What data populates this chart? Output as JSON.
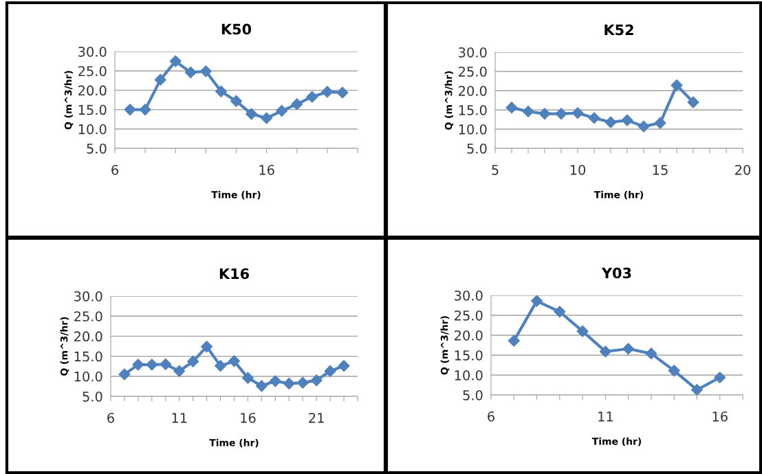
{
  "chart_data": [
    {
      "type": "line",
      "title": "K50",
      "xlabel": "Time (hr)",
      "ylabel": "Q (m^3/hr)",
      "x": [
        7,
        8,
        9,
        10,
        11,
        12,
        13,
        14,
        15,
        16,
        17,
        18,
        19,
        20,
        21
      ],
      "series": [
        {
          "color": "#4f81bd",
          "values": [
            15.0,
            15.0,
            22.7,
            27.5,
            24.6,
            24.9,
            19.7,
            17.2,
            13.9,
            12.8,
            14.7,
            16.4,
            18.3,
            19.6,
            19.4
          ]
        }
      ],
      "xlim": [
        6,
        22
      ],
      "xticks": [
        6,
        {
          "value": 8,
          "label": null
        },
        {
          "value": 10,
          "label": null
        },
        {
          "value": 12,
          "label": null
        },
        {
          "value": 14,
          "label": null
        },
        16,
        {
          "value": 18,
          "label": null
        },
        {
          "value": 20,
          "label": null
        },
        {
          "value": 22,
          "label": null
        }
      ],
      "ylim": [
        5,
        30
      ],
      "yticks": [
        {
          "value": 5,
          "label": "5.0"
        },
        {
          "value": 10,
          "label": "10.0"
        },
        {
          "value": 15,
          "label": "15.0"
        },
        {
          "value": 20,
          "label": "20.0"
        },
        {
          "value": 25,
          "label": "25.0"
        },
        {
          "value": 30,
          "label": "30.0"
        }
      ],
      "grid": "y",
      "marker": "diamond",
      "line_style": "solid",
      "legend": false
    },
    {
      "type": "line",
      "title": "K52",
      "xlabel": "Time (hr)",
      "ylabel": "Q (m^3/hr)",
      "x": [
        6,
        7,
        8,
        9,
        10,
        11,
        12,
        13,
        14,
        15,
        16,
        17
      ],
      "series": [
        {
          "color": "#4f81bd",
          "values": [
            15.6,
            14.6,
            14.0,
            14.0,
            14.2,
            12.9,
            11.8,
            12.3,
            10.7,
            11.6,
            21.4,
            17.0
          ]
        }
      ],
      "xlim": [
        5,
        20
      ],
      "xticks": [
        5,
        {
          "value": 6,
          "label": null
        },
        {
          "value": 7,
          "label": null
        },
        {
          "value": 8,
          "label": null
        },
        {
          "value": 9,
          "label": null
        },
        10,
        {
          "value": 11,
          "label": null
        },
        {
          "value": 12,
          "label": null
        },
        {
          "value": 13,
          "label": null
        },
        {
          "value": 14,
          "label": null
        },
        15,
        {
          "value": 16,
          "label": null
        },
        {
          "value": 17,
          "label": null
        },
        {
          "value": 18,
          "label": null
        },
        {
          "value": 19,
          "label": null
        },
        20
      ],
      "ylim": [
        5,
        30
      ],
      "yticks": [
        {
          "value": 5,
          "label": "5.0"
        },
        {
          "value": 10,
          "label": "10.0"
        },
        {
          "value": 15,
          "label": "15.0"
        },
        {
          "value": 20,
          "label": "20.0"
        },
        {
          "value": 25,
          "label": "25.0"
        },
        {
          "value": 30,
          "label": "30.0"
        }
      ],
      "grid": "y",
      "marker": "diamond",
      "line_style": "solid",
      "legend": false
    },
    {
      "type": "line",
      "title": "K16",
      "xlabel": "Time (hr)",
      "ylabel": "Q (m^3/hr)",
      "x": [
        7,
        8,
        9,
        10,
        11,
        12,
        13,
        14,
        15,
        16,
        17,
        18,
        19,
        20,
        21,
        22,
        23
      ],
      "series": [
        {
          "color": "#4f81bd",
          "values": [
            10.5,
            12.9,
            12.9,
            13.0,
            11.3,
            13.7,
            17.4,
            12.6,
            13.8,
            9.6,
            7.6,
            8.8,
            8.2,
            8.4,
            9.0,
            11.3,
            12.6
          ]
        }
      ],
      "xlim": [
        6,
        24
      ],
      "xticks": [
        6,
        {
          "value": 7,
          "label": null
        },
        {
          "value": 8,
          "label": null
        },
        {
          "value": 9,
          "label": null
        },
        {
          "value": 10,
          "label": null
        },
        11,
        {
          "value": 12,
          "label": null
        },
        {
          "value": 13,
          "label": null
        },
        {
          "value": 14,
          "label": null
        },
        {
          "value": 15,
          "label": null
        },
        16,
        {
          "value": 17,
          "label": null
        },
        {
          "value": 18,
          "label": null
        },
        {
          "value": 19,
          "label": null
        },
        {
          "value": 20,
          "label": null
        },
        21,
        {
          "value": 22,
          "label": null
        },
        {
          "value": 23,
          "label": null
        },
        {
          "value": 24,
          "label": null
        }
      ],
      "ylim": [
        5,
        30
      ],
      "yticks": [
        {
          "value": 5,
          "label": "5.0"
        },
        {
          "value": 10,
          "label": "10.0"
        },
        {
          "value": 15,
          "label": "15.0"
        },
        {
          "value": 20,
          "label": "20.0"
        },
        {
          "value": 25,
          "label": "25.0"
        },
        {
          "value": 30,
          "label": "30.0"
        }
      ],
      "grid": "y",
      "marker": "diamond",
      "line_style": "solid",
      "legend": false
    },
    {
      "type": "line",
      "title": "Y03",
      "xlabel": "Time (hr)",
      "ylabel": "Q (m^3/hr)",
      "x": [
        7,
        8,
        9,
        10,
        11,
        12,
        13,
        14,
        15,
        16
      ],
      "series": [
        {
          "color": "#4f81bd",
          "values": [
            18.6,
            28.6,
            25.9,
            21.0,
            15.9,
            16.6,
            15.4,
            11.1,
            6.3,
            9.4
          ]
        }
      ],
      "xlim": [
        6,
        17
      ],
      "xticks": [
        6,
        {
          "value": 7,
          "label": null
        },
        {
          "value": 8,
          "label": null
        },
        {
          "value": 9,
          "label": null
        },
        {
          "value": 10,
          "label": null
        },
        11,
        {
          "value": 12,
          "label": null
        },
        {
          "value": 13,
          "label": null
        },
        {
          "value": 14,
          "label": null
        },
        {
          "value": 15,
          "label": null
        },
        16,
        {
          "value": 17,
          "label": null
        }
      ],
      "ylim": [
        5,
        30
      ],
      "yticks": [
        {
          "value": 5,
          "label": "5.0"
        },
        {
          "value": 10,
          "label": "10.0"
        },
        {
          "value": 15,
          "label": "15.0"
        },
        {
          "value": 20,
          "label": "20.0"
        },
        {
          "value": 25,
          "label": "25.0"
        },
        {
          "value": 30,
          "label": "30.0"
        }
      ],
      "grid": "y",
      "marker": "diamond",
      "line_style": "solid",
      "legend": false
    }
  ]
}
